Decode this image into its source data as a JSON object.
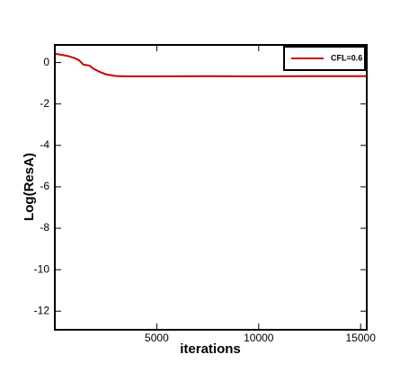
{
  "chart_data": {
    "type": "line",
    "xlabel": "iterations",
    "ylabel": "Log(ResA)",
    "x": [
      0,
      300,
      700,
      1000,
      1200,
      1400,
      1700,
      1900,
      2200,
      2500,
      3000,
      3500,
      5000,
      7500,
      10000,
      12500,
      15300
    ],
    "series": [
      {
        "name": "CFL=0.6",
        "color": "#cc0000",
        "values": [
          0.42,
          0.38,
          0.3,
          0.2,
          0.1,
          -0.1,
          -0.15,
          -0.3,
          -0.45,
          -0.57,
          -0.65,
          -0.67,
          -0.67,
          -0.66,
          -0.67,
          -0.66,
          -0.66
        ]
      }
    ],
    "xlim": [
      0,
      15300
    ],
    "ylim": [
      -12.9,
      0.85
    ],
    "xticks": [
      5000,
      10000,
      15000
    ],
    "yticks": [
      0,
      -2,
      -4,
      -6,
      -8,
      -10,
      -12
    ],
    "legend": "upper right",
    "grid": false
  }
}
